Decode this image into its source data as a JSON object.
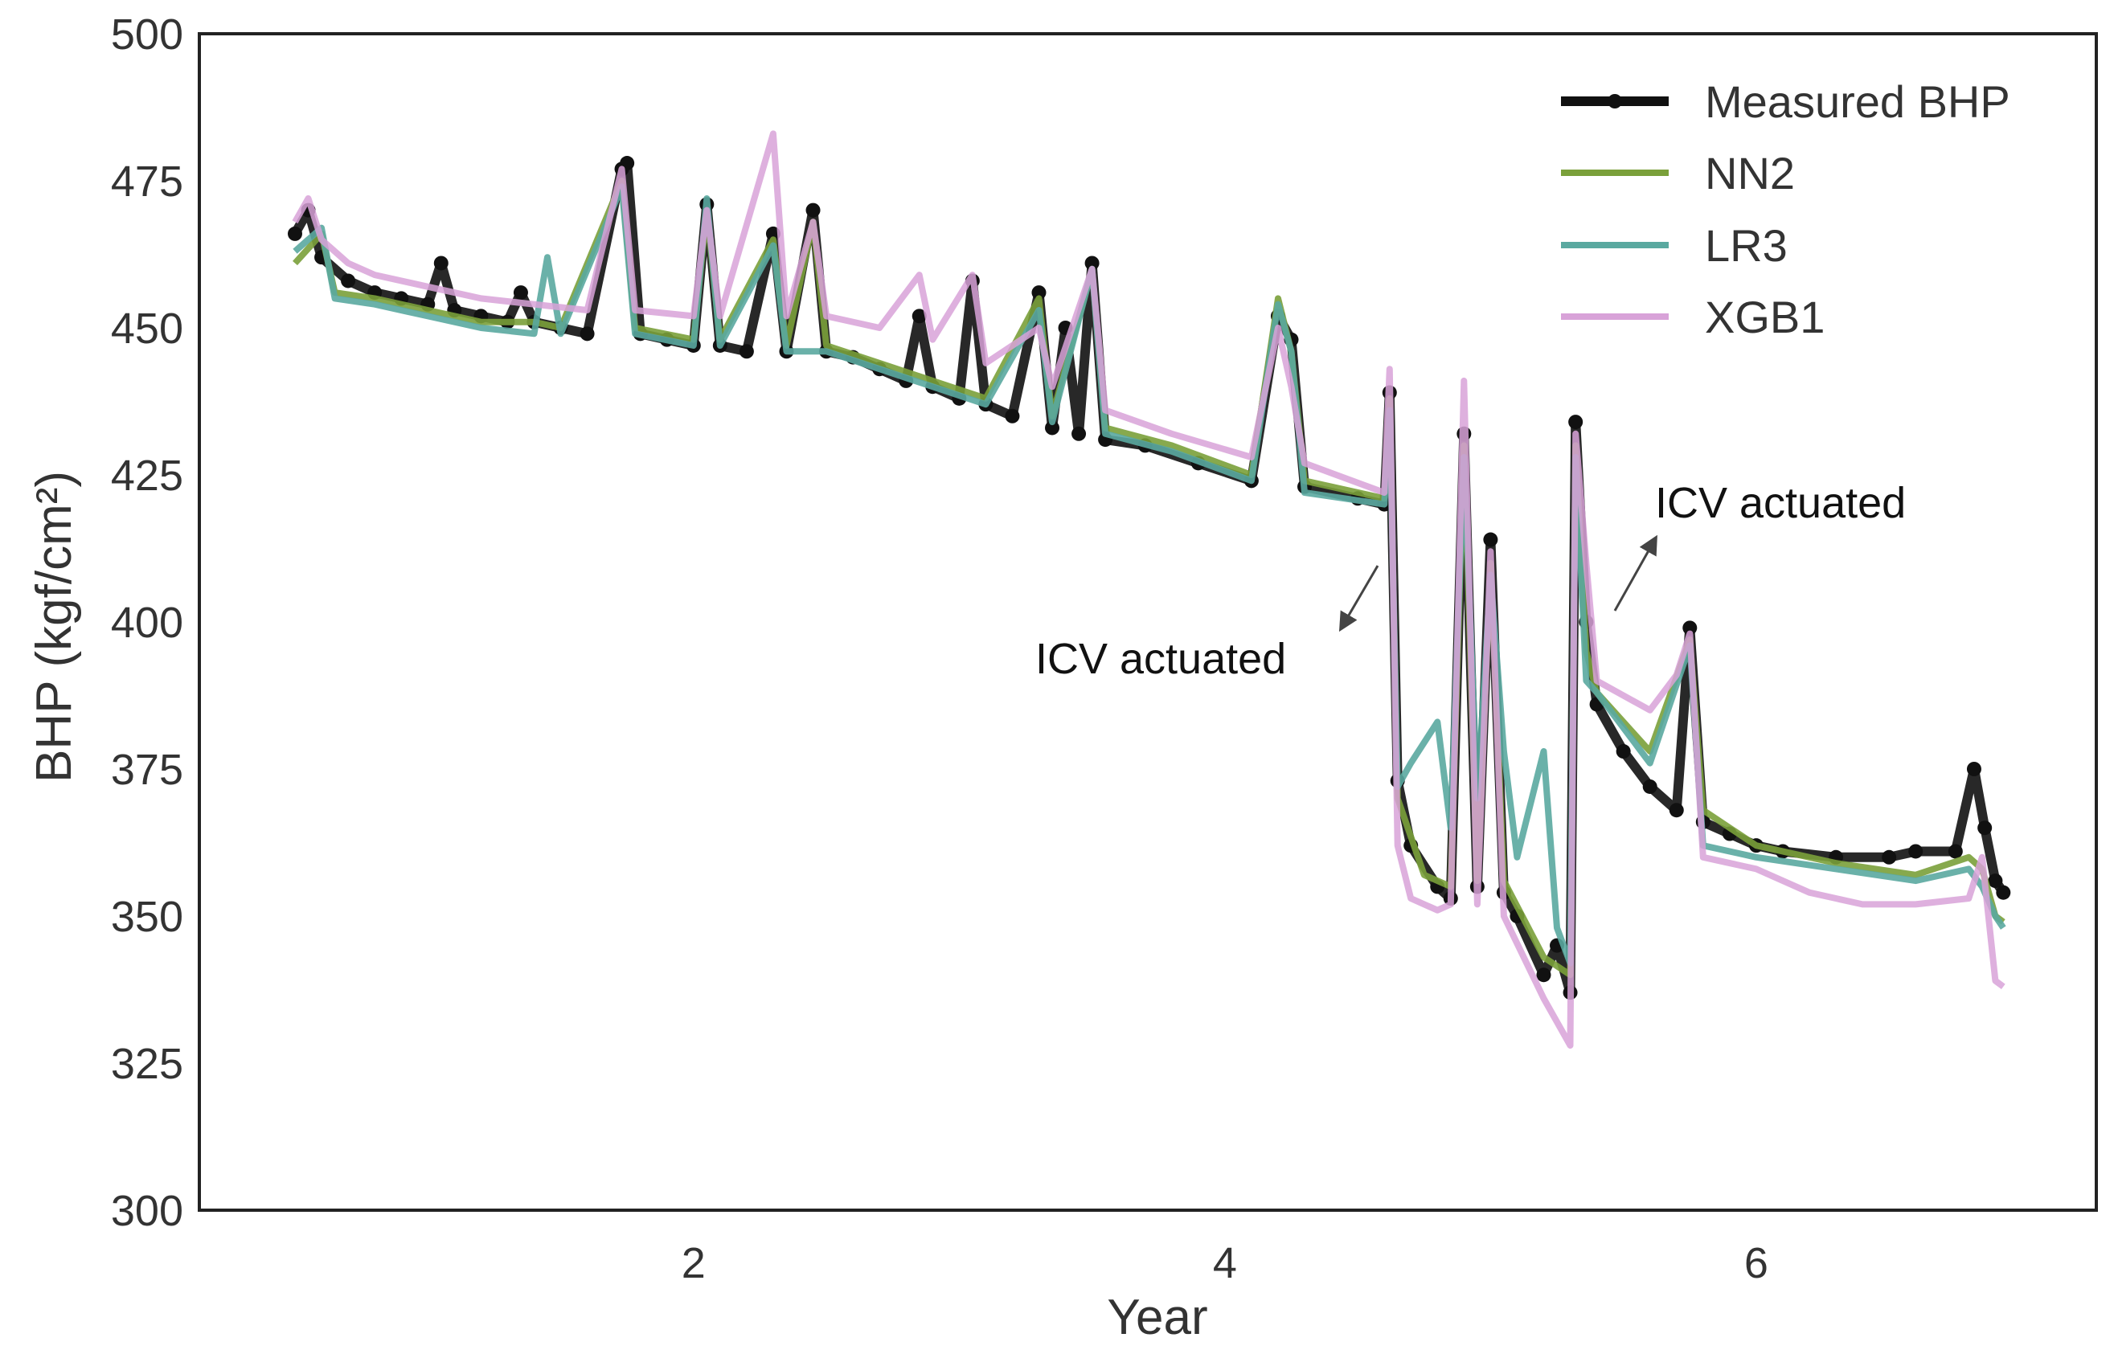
{
  "chart_data": {
    "type": "line",
    "title": "",
    "xlabel": "Year",
    "ylabel": "BHP (kgf/cm²)",
    "xlim": [
      0.14,
      7.28
    ],
    "ylim": [
      300,
      500
    ],
    "xticks": [
      2,
      4,
      6
    ],
    "yticks": [
      300,
      325,
      350,
      375,
      400,
      425,
      450,
      475,
      500
    ],
    "grid": false,
    "legend_position": "top-right",
    "annotations": [
      {
        "text": "ICV actuated",
        "x": 4.6,
        "y": 420,
        "text_x": 3.32,
        "text_y": 393
      },
      {
        "text": "ICV actuated",
        "x": 5.5,
        "y": 418,
        "text_x": 5.59,
        "text_y": 421
      }
    ],
    "series": [
      {
        "name": "Measured BHP",
        "color": "#111111",
        "markers": true,
        "points": [
          [
            0.5,
            466
          ],
          [
            0.55,
            470
          ],
          [
            0.6,
            462
          ],
          [
            0.7,
            458
          ],
          [
            0.8,
            456
          ],
          [
            0.9,
            455
          ],
          [
            1.0,
            454
          ],
          [
            1.05,
            461
          ],
          [
            1.1,
            453
          ],
          [
            1.2,
            452
          ],
          [
            1.3,
            451
          ],
          [
            1.35,
            456
          ],
          [
            1.4,
            451
          ],
          [
            1.5,
            450
          ],
          [
            1.6,
            449
          ],
          [
            1.73,
            477
          ],
          [
            1.75,
            478
          ],
          [
            1.8,
            449
          ],
          [
            1.9,
            448
          ],
          [
            2.0,
            447
          ],
          [
            2.05,
            471
          ],
          [
            2.1,
            447
          ],
          [
            2.2,
            446
          ],
          [
            2.3,
            466
          ],
          [
            2.35,
            446
          ],
          [
            2.45,
            470
          ],
          [
            2.5,
            446
          ],
          [
            2.6,
            445
          ],
          [
            2.7,
            443
          ],
          [
            2.8,
            441
          ],
          [
            2.85,
            452
          ],
          [
            2.9,
            440
          ],
          [
            3.0,
            438
          ],
          [
            3.05,
            458
          ],
          [
            3.1,
            437
          ],
          [
            3.2,
            435
          ],
          [
            3.3,
            456
          ],
          [
            3.35,
            433
          ],
          [
            3.4,
            450
          ],
          [
            3.45,
            432
          ],
          [
            3.5,
            461
          ],
          [
            3.55,
            431
          ],
          [
            3.7,
            430
          ],
          [
            3.9,
            427
          ],
          [
            4.1,
            424
          ],
          [
            4.2,
            452
          ],
          [
            4.25,
            448
          ],
          [
            4.3,
            423
          ],
          [
            4.5,
            421
          ],
          [
            4.6,
            420
          ],
          [
            4.62,
            439
          ],
          [
            4.65,
            373
          ],
          [
            4.7,
            362
          ],
          [
            4.8,
            355
          ],
          [
            4.85,
            353
          ],
          [
            4.9,
            432
          ],
          [
            4.95,
            355
          ],
          [
            5.0,
            414
          ],
          [
            5.05,
            354
          ],
          [
            5.1,
            350
          ],
          [
            5.2,
            340
          ],
          [
            5.25,
            345
          ],
          [
            5.3,
            337
          ],
          [
            5.32,
            434
          ],
          [
            5.36,
            400
          ],
          [
            5.4,
            386
          ],
          [
            5.5,
            378
          ],
          [
            5.6,
            372
          ],
          [
            5.7,
            368
          ],
          [
            5.75,
            399
          ],
          [
            5.8,
            366
          ],
          [
            5.9,
            364
          ],
          [
            6.0,
            362
          ],
          [
            6.1,
            361
          ],
          [
            6.3,
            360
          ],
          [
            6.5,
            360
          ],
          [
            6.6,
            361
          ],
          [
            6.75,
            361
          ],
          [
            6.82,
            375
          ],
          [
            6.86,
            365
          ],
          [
            6.9,
            356
          ],
          [
            6.93,
            354
          ]
        ]
      },
      {
        "name": "NN2",
        "color": "#7aa03a",
        "markers": false,
        "points": [
          [
            0.5,
            461
          ],
          [
            0.6,
            466
          ],
          [
            0.65,
            456
          ],
          [
            0.8,
            455
          ],
          [
            1.0,
            453
          ],
          [
            1.2,
            451
          ],
          [
            1.4,
            451
          ],
          [
            1.5,
            450
          ],
          [
            1.73,
            475
          ],
          [
            1.78,
            450
          ],
          [
            2.0,
            448
          ],
          [
            2.05,
            470
          ],
          [
            2.1,
            448
          ],
          [
            2.3,
            465
          ],
          [
            2.35,
            447
          ],
          [
            2.45,
            468
          ],
          [
            2.5,
            447
          ],
          [
            2.7,
            444
          ],
          [
            2.9,
            441
          ],
          [
            3.1,
            438
          ],
          [
            3.3,
            455
          ],
          [
            3.35,
            435
          ],
          [
            3.5,
            460
          ],
          [
            3.55,
            433
          ],
          [
            3.8,
            430
          ],
          [
            4.1,
            425
          ],
          [
            4.2,
            455
          ],
          [
            4.25,
            446
          ],
          [
            4.3,
            424
          ],
          [
            4.6,
            421
          ],
          [
            4.62,
            438
          ],
          [
            4.65,
            370
          ],
          [
            4.75,
            357
          ],
          [
            4.85,
            355
          ],
          [
            4.9,
            430
          ],
          [
            4.95,
            356
          ],
          [
            5.0,
            410
          ],
          [
            5.05,
            356
          ],
          [
            5.2,
            343
          ],
          [
            5.3,
            340
          ],
          [
            5.32,
            430
          ],
          [
            5.36,
            395
          ],
          [
            5.4,
            388
          ],
          [
            5.6,
            378
          ],
          [
            5.75,
            397
          ],
          [
            5.8,
            368
          ],
          [
            6.0,
            362
          ],
          [
            6.3,
            359
          ],
          [
            6.6,
            357
          ],
          [
            6.8,
            360
          ],
          [
            6.85,
            358
          ],
          [
            6.9,
            350
          ],
          [
            6.93,
            349
          ]
        ]
      },
      {
        "name": "LR3",
        "color": "#5aa9a0",
        "markers": false,
        "points": [
          [
            0.5,
            463
          ],
          [
            0.6,
            467
          ],
          [
            0.65,
            455
          ],
          [
            0.8,
            454
          ],
          [
            1.0,
            452
          ],
          [
            1.2,
            450
          ],
          [
            1.4,
            449
          ],
          [
            1.45,
            462
          ],
          [
            1.5,
            449
          ],
          [
            1.73,
            474
          ],
          [
            1.78,
            449
          ],
          [
            2.0,
            447
          ],
          [
            2.05,
            472
          ],
          [
            2.1,
            447
          ],
          [
            2.3,
            464
          ],
          [
            2.35,
            446
          ],
          [
            2.5,
            446
          ],
          [
            2.7,
            443
          ],
          [
            2.9,
            440
          ],
          [
            3.1,
            437
          ],
          [
            3.3,
            453
          ],
          [
            3.35,
            434
          ],
          [
            3.5,
            460
          ],
          [
            3.55,
            432
          ],
          [
            3.8,
            429
          ],
          [
            4.1,
            424
          ],
          [
            4.2,
            454
          ],
          [
            4.25,
            446
          ],
          [
            4.3,
            422
          ],
          [
            4.6,
            420
          ],
          [
            4.62,
            436
          ],
          [
            4.65,
            372
          ],
          [
            4.7,
            376
          ],
          [
            4.8,
            383
          ],
          [
            4.85,
            365
          ],
          [
            4.9,
            428
          ],
          [
            4.95,
            370
          ],
          [
            5.0,
            408
          ],
          [
            5.05,
            378
          ],
          [
            5.1,
            360
          ],
          [
            5.2,
            378
          ],
          [
            5.25,
            348
          ],
          [
            5.3,
            342
          ],
          [
            5.32,
            428
          ],
          [
            5.36,
            390
          ],
          [
            5.4,
            388
          ],
          [
            5.6,
            376
          ],
          [
            5.75,
            396
          ],
          [
            5.8,
            362
          ],
          [
            6.0,
            360
          ],
          [
            6.3,
            358
          ],
          [
            6.6,
            356
          ],
          [
            6.8,
            358
          ],
          [
            6.85,
            355
          ],
          [
            6.9,
            350
          ],
          [
            6.93,
            348
          ]
        ]
      },
      {
        "name": "XGB1",
        "color": "#d8a2d8",
        "markers": false,
        "points": [
          [
            0.5,
            468
          ],
          [
            0.55,
            472
          ],
          [
            0.6,
            465
          ],
          [
            0.7,
            461
          ],
          [
            0.8,
            459
          ],
          [
            1.0,
            457
          ],
          [
            1.2,
            455
          ],
          [
            1.4,
            454
          ],
          [
            1.6,
            453
          ],
          [
            1.73,
            477
          ],
          [
            1.78,
            453
          ],
          [
            2.0,
            452
          ],
          [
            2.05,
            470
          ],
          [
            2.1,
            452
          ],
          [
            2.3,
            483
          ],
          [
            2.35,
            452
          ],
          [
            2.45,
            468
          ],
          [
            2.5,
            452
          ],
          [
            2.7,
            450
          ],
          [
            2.85,
            459
          ],
          [
            2.9,
            448
          ],
          [
            3.05,
            459
          ],
          [
            3.1,
            444
          ],
          [
            3.3,
            450
          ],
          [
            3.35,
            440
          ],
          [
            3.5,
            460
          ],
          [
            3.55,
            436
          ],
          [
            3.8,
            432
          ],
          [
            4.1,
            428
          ],
          [
            4.2,
            450
          ],
          [
            4.25,
            440
          ],
          [
            4.3,
            427
          ],
          [
            4.6,
            422
          ],
          [
            4.62,
            443
          ],
          [
            4.65,
            362
          ],
          [
            4.7,
            353
          ],
          [
            4.8,
            351
          ],
          [
            4.85,
            352
          ],
          [
            4.9,
            441
          ],
          [
            4.95,
            352
          ],
          [
            5.0,
            412
          ],
          [
            5.05,
            350
          ],
          [
            5.2,
            336
          ],
          [
            5.3,
            328
          ],
          [
            5.32,
            432
          ],
          [
            5.36,
            410
          ],
          [
            5.4,
            390
          ],
          [
            5.6,
            385
          ],
          [
            5.7,
            391
          ],
          [
            5.75,
            398
          ],
          [
            5.8,
            360
          ],
          [
            6.0,
            358
          ],
          [
            6.2,
            354
          ],
          [
            6.4,
            352
          ],
          [
            6.6,
            352
          ],
          [
            6.8,
            353
          ],
          [
            6.85,
            360
          ],
          [
            6.9,
            339
          ],
          [
            6.93,
            338
          ]
        ]
      }
    ]
  }
}
